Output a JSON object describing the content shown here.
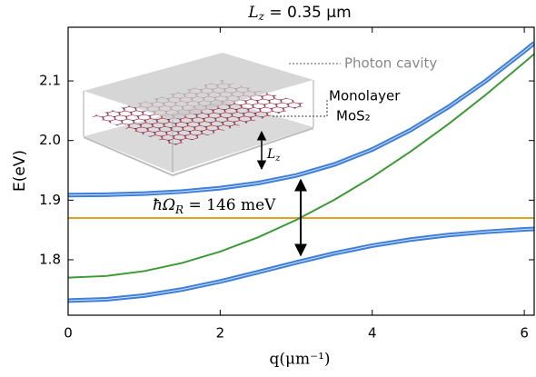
{
  "chart_data": {
    "type": "line",
    "title": {
      "var": "L",
      "sub": "z",
      "rest": " = 0.35 μm"
    },
    "x_label": "q(μm⁻¹)",
    "y_label": "E(eV)",
    "annotations": {
      "rabi": {
        "main": "ħΩ",
        "sub": "R",
        "rest": " = 146 meV"
      },
      "photon_cavity": "Photon cavity",
      "monolayer": "Monolayer",
      "mos2": "MoS₂",
      "lz": {
        "var": "L",
        "sub": "z"
      }
    },
    "x": [
      0,
      0.5,
      1,
      1.5,
      2,
      2.5,
      3,
      3.5,
      4,
      4.5,
      5,
      5.5,
      6,
      6.13
    ],
    "series": [
      {
        "color": "#e3a11f",
        "values": [
          1.87,
          1.87,
          1.87,
          1.87,
          1.87,
          1.87,
          1.87,
          1.87,
          1.87,
          1.87,
          1.87,
          1.87,
          1.87,
          1.87
        ]
      },
      {
        "color": "#3c9a35",
        "values": [
          1.77,
          1.7728,
          1.781,
          1.7947,
          1.8137,
          1.8378,
          1.8668,
          1.9005,
          1.9387,
          1.9811,
          2.0274,
          2.0774,
          2.1309,
          2.1452
        ]
      },
      {
        "color": "#3d7fdb",
        "values": [
          1.9085,
          1.9091,
          1.911,
          1.9145,
          1.9201,
          1.9287,
          1.9414,
          1.9598,
          1.985,
          2.0173,
          2.0561,
          2.1005,
          2.1499,
          2.1634
        ]
      },
      {
        "color": "#3d7fdb",
        "values": [
          1.7315,
          1.7337,
          1.74,
          1.7502,
          1.7636,
          1.7792,
          1.7954,
          1.8107,
          1.8237,
          1.8338,
          1.8414,
          1.8469,
          1.851,
          1.8518
        ]
      }
    ],
    "xlim": [
      0,
      6.13
    ],
    "ylim": [
      1.707,
      2.19
    ],
    "xticks": [
      0,
      2,
      4,
      6
    ],
    "yticks": [
      1.8,
      1.9,
      {
        "value": 2,
        "label": "2.0"
      },
      2.1
    ]
  }
}
